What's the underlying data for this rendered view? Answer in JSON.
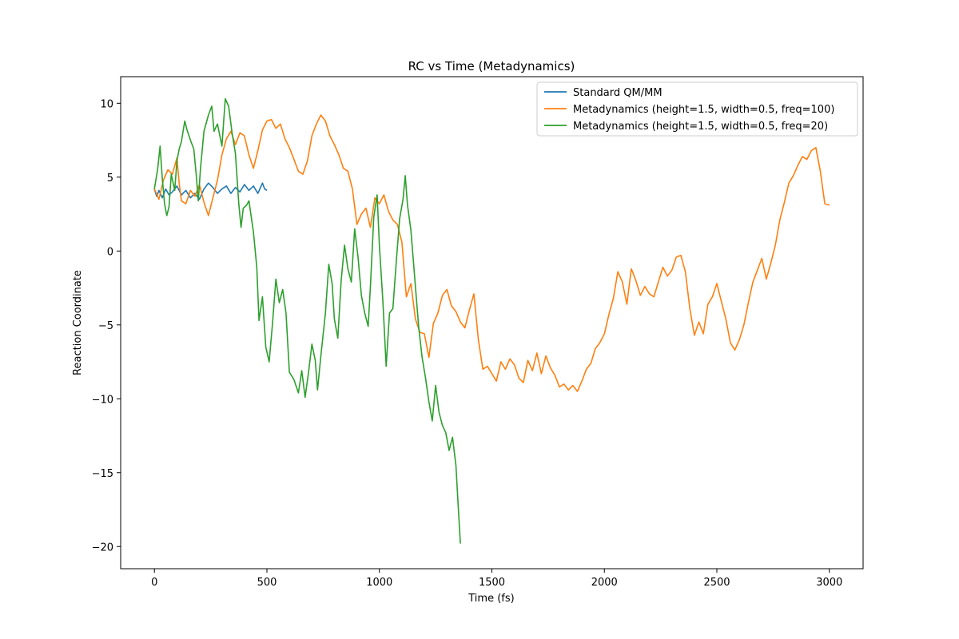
{
  "chart_data": {
    "type": "line",
    "title": "RC vs Time (Metadynamics)",
    "xlabel": "Time (fs)",
    "ylabel": "Reaction Coordinate",
    "xlim": [
      -150,
      3150
    ],
    "ylim": [
      -21.5,
      11.8
    ],
    "xticks": [
      0,
      500,
      1000,
      1500,
      2000,
      2500,
      3000
    ],
    "yticks": [
      -20,
      -15,
      -10,
      -5,
      0,
      5,
      10
    ],
    "grid": false,
    "legend_position": "top-right",
    "series": [
      {
        "name": "Standard QM/MM",
        "color": "#1f77b4",
        "points": [
          [
            0,
            4.2
          ],
          [
            10,
            3.7
          ],
          [
            20,
            4.1
          ],
          [
            35,
            3.6
          ],
          [
            50,
            4.2
          ],
          [
            65,
            3.8
          ],
          [
            80,
            4.0
          ],
          [
            100,
            4.4
          ],
          [
            120,
            3.8
          ],
          [
            140,
            4.1
          ],
          [
            160,
            3.6
          ],
          [
            180,
            3.9
          ],
          [
            200,
            3.5
          ],
          [
            220,
            4.2
          ],
          [
            240,
            4.6
          ],
          [
            260,
            4.3
          ],
          [
            280,
            3.9
          ],
          [
            300,
            4.2
          ],
          [
            320,
            4.4
          ],
          [
            340,
            3.9
          ],
          [
            360,
            4.3
          ],
          [
            380,
            4.0
          ],
          [
            400,
            4.5
          ],
          [
            420,
            4.1
          ],
          [
            440,
            4.4
          ],
          [
            460,
            3.9
          ],
          [
            480,
            4.6
          ],
          [
            490,
            4.2
          ],
          [
            500,
            4.1
          ]
        ]
      },
      {
        "name": "Metadynamics (height=1.5, width=0.5, freq=100)",
        "color": "#ff7f0e",
        "points": [
          [
            0,
            4.2
          ],
          [
            20,
            3.5
          ],
          [
            40,
            4.8
          ],
          [
            60,
            5.5
          ],
          [
            80,
            5.2
          ],
          [
            100,
            6.3
          ],
          [
            110,
            4.6
          ],
          [
            120,
            3.4
          ],
          [
            140,
            3.2
          ],
          [
            160,
            4.1
          ],
          [
            180,
            3.7
          ],
          [
            200,
            4.5
          ],
          [
            220,
            3.3
          ],
          [
            240,
            2.4
          ],
          [
            260,
            3.6
          ],
          [
            280,
            4.8
          ],
          [
            300,
            6.5
          ],
          [
            320,
            7.6
          ],
          [
            340,
            8.1
          ],
          [
            360,
            7.2
          ],
          [
            380,
            8.0
          ],
          [
            400,
            7.8
          ],
          [
            420,
            6.5
          ],
          [
            440,
            5.6
          ],
          [
            460,
            6.8
          ],
          [
            480,
            8.2
          ],
          [
            500,
            8.8
          ],
          [
            520,
            8.9
          ],
          [
            540,
            8.3
          ],
          [
            560,
            8.6
          ],
          [
            580,
            7.6
          ],
          [
            600,
            7.0
          ],
          [
            620,
            6.2
          ],
          [
            640,
            5.4
          ],
          [
            660,
            5.2
          ],
          [
            680,
            6.1
          ],
          [
            700,
            7.8
          ],
          [
            720,
            8.6
          ],
          [
            740,
            9.2
          ],
          [
            760,
            8.8
          ],
          [
            780,
            7.8
          ],
          [
            800,
            7.2
          ],
          [
            820,
            6.5
          ],
          [
            840,
            5.6
          ],
          [
            860,
            5.4
          ],
          [
            880,
            4.2
          ],
          [
            900,
            1.8
          ],
          [
            920,
            2.5
          ],
          [
            940,
            2.9
          ],
          [
            960,
            1.6
          ],
          [
            980,
            3.6
          ],
          [
            1000,
            3.2
          ],
          [
            1020,
            3.8
          ],
          [
            1040,
            2.7
          ],
          [
            1060,
            2.1
          ],
          [
            1080,
            1.8
          ],
          [
            1100,
            0.6
          ],
          [
            1120,
            -3.1
          ],
          [
            1140,
            -2.2
          ],
          [
            1160,
            -4.6
          ],
          [
            1180,
            -5.5
          ],
          [
            1200,
            -5.6
          ],
          [
            1220,
            -7.2
          ],
          [
            1240,
            -4.9
          ],
          [
            1260,
            -4.2
          ],
          [
            1280,
            -3.0
          ],
          [
            1300,
            -2.6
          ],
          [
            1320,
            -3.7
          ],
          [
            1340,
            -4.1
          ],
          [
            1360,
            -4.8
          ],
          [
            1380,
            -5.2
          ],
          [
            1400,
            -4.0
          ],
          [
            1420,
            -2.9
          ],
          [
            1440,
            -6.0
          ],
          [
            1460,
            -8.0
          ],
          [
            1480,
            -7.8
          ],
          [
            1500,
            -8.3
          ],
          [
            1520,
            -8.8
          ],
          [
            1540,
            -7.5
          ],
          [
            1560,
            -8.0
          ],
          [
            1580,
            -7.3
          ],
          [
            1600,
            -7.7
          ],
          [
            1620,
            -8.6
          ],
          [
            1640,
            -8.9
          ],
          [
            1660,
            -7.4
          ],
          [
            1680,
            -8.1
          ],
          [
            1700,
            -6.9
          ],
          [
            1720,
            -8.3
          ],
          [
            1740,
            -7.1
          ],
          [
            1760,
            -7.9
          ],
          [
            1780,
            -8.4
          ],
          [
            1800,
            -9.2
          ],
          [
            1820,
            -9.0
          ],
          [
            1840,
            -9.4
          ],
          [
            1860,
            -9.1
          ],
          [
            1880,
            -9.5
          ],
          [
            1900,
            -8.8
          ],
          [
            1920,
            -8.0
          ],
          [
            1940,
            -7.6
          ],
          [
            1960,
            -6.6
          ],
          [
            1980,
            -6.2
          ],
          [
            2000,
            -5.6
          ],
          [
            2020,
            -4.3
          ],
          [
            2040,
            -3.2
          ],
          [
            2060,
            -1.4
          ],
          [
            2080,
            -2.1
          ],
          [
            2100,
            -3.6
          ],
          [
            2120,
            -1.2
          ],
          [
            2140,
            -2.0
          ],
          [
            2160,
            -3.0
          ],
          [
            2180,
            -2.4
          ],
          [
            2200,
            -2.9
          ],
          [
            2220,
            -3.1
          ],
          [
            2240,
            -2.1
          ],
          [
            2260,
            -1.1
          ],
          [
            2280,
            -1.7
          ],
          [
            2300,
            -1.3
          ],
          [
            2320,
            -0.4
          ],
          [
            2340,
            -0.3
          ],
          [
            2360,
            -1.4
          ],
          [
            2380,
            -3.9
          ],
          [
            2400,
            -5.7
          ],
          [
            2420,
            -4.8
          ],
          [
            2440,
            -5.6
          ],
          [
            2460,
            -3.6
          ],
          [
            2480,
            -3.1
          ],
          [
            2500,
            -2.2
          ],
          [
            2520,
            -3.4
          ],
          [
            2540,
            -4.6
          ],
          [
            2560,
            -6.2
          ],
          [
            2580,
            -6.7
          ],
          [
            2600,
            -6.0
          ],
          [
            2620,
            -5.0
          ],
          [
            2640,
            -3.5
          ],
          [
            2660,
            -2.1
          ],
          [
            2680,
            -1.3
          ],
          [
            2700,
            -0.5
          ],
          [
            2720,
            -1.9
          ],
          [
            2740,
            -0.8
          ],
          [
            2760,
            0.4
          ],
          [
            2780,
            2.1
          ],
          [
            2800,
            3.3
          ],
          [
            2820,
            4.6
          ],
          [
            2840,
            5.1
          ],
          [
            2860,
            5.8
          ],
          [
            2880,
            6.4
          ],
          [
            2900,
            6.2
          ],
          [
            2920,
            6.8
          ],
          [
            2940,
            7.0
          ],
          [
            2960,
            5.4
          ],
          [
            2980,
            3.2
          ],
          [
            3000,
            3.1
          ]
        ]
      },
      {
        "name": "Metadynamics (height=1.5, width=0.5, freq=20)",
        "color": "#2ca02c",
        "points": [
          [
            0,
            4.2
          ],
          [
            15,
            5.6
          ],
          [
            25,
            7.1
          ],
          [
            35,
            4.9
          ],
          [
            45,
            3.2
          ],
          [
            55,
            2.4
          ],
          [
            65,
            3.0
          ],
          [
            75,
            5.2
          ],
          [
            90,
            4.1
          ],
          [
            100,
            6.1
          ],
          [
            110,
            6.9
          ],
          [
            120,
            7.4
          ],
          [
            135,
            8.8
          ],
          [
            145,
            8.2
          ],
          [
            160,
            7.5
          ],
          [
            175,
            6.9
          ],
          [
            185,
            5.3
          ],
          [
            195,
            3.4
          ],
          [
            205,
            5.6
          ],
          [
            220,
            8.1
          ],
          [
            240,
            9.2
          ],
          [
            255,
            9.8
          ],
          [
            265,
            8.1
          ],
          [
            280,
            8.6
          ],
          [
            300,
            7.1
          ],
          [
            315,
            10.3
          ],
          [
            330,
            9.8
          ],
          [
            345,
            8.0
          ],
          [
            360,
            6.6
          ],
          [
            375,
            3.2
          ],
          [
            385,
            1.6
          ],
          [
            395,
            2.9
          ],
          [
            410,
            3.1
          ],
          [
            420,
            3.4
          ],
          [
            440,
            1.3
          ],
          [
            455,
            -1.1
          ],
          [
            465,
            -4.7
          ],
          [
            480,
            -3.1
          ],
          [
            495,
            -6.5
          ],
          [
            510,
            -7.5
          ],
          [
            525,
            -4.9
          ],
          [
            540,
            -1.9
          ],
          [
            555,
            -3.5
          ],
          [
            570,
            -2.6
          ],
          [
            585,
            -4.2
          ],
          [
            600,
            -8.2
          ],
          [
            620,
            -8.7
          ],
          [
            640,
            -9.6
          ],
          [
            655,
            -8.1
          ],
          [
            670,
            -9.9
          ],
          [
            685,
            -8.2
          ],
          [
            700,
            -6.3
          ],
          [
            715,
            -7.4
          ],
          [
            725,
            -9.4
          ],
          [
            740,
            -7.1
          ],
          [
            760,
            -4.2
          ],
          [
            775,
            -0.9
          ],
          [
            790,
            -2.2
          ],
          [
            800,
            -4.6
          ],
          [
            815,
            -5.9
          ],
          [
            830,
            -2.0
          ],
          [
            845,
            0.4
          ],
          [
            860,
            -1.2
          ],
          [
            875,
            -2.1
          ],
          [
            890,
            1.5
          ],
          [
            905,
            -0.4
          ],
          [
            920,
            -3.0
          ],
          [
            935,
            -4.2
          ],
          [
            950,
            -5.1
          ],
          [
            960,
            -2.4
          ],
          [
            975,
            2.3
          ],
          [
            990,
            3.8
          ],
          [
            1000,
            0.4
          ],
          [
            1015,
            -3.3
          ],
          [
            1030,
            -7.8
          ],
          [
            1045,
            -4.2
          ],
          [
            1060,
            -3.9
          ],
          [
            1075,
            -0.7
          ],
          [
            1090,
            2.2
          ],
          [
            1105,
            3.5
          ],
          [
            1115,
            5.1
          ],
          [
            1125,
            3.1
          ],
          [
            1140,
            1.4
          ],
          [
            1160,
            -2.4
          ],
          [
            1175,
            -5.2
          ],
          [
            1190,
            -7.2
          ],
          [
            1205,
            -8.6
          ],
          [
            1220,
            -10.2
          ],
          [
            1235,
            -11.5
          ],
          [
            1250,
            -9.1
          ],
          [
            1265,
            -10.9
          ],
          [
            1280,
            -11.8
          ],
          [
            1295,
            -12.3
          ],
          [
            1310,
            -13.5
          ],
          [
            1325,
            -12.6
          ],
          [
            1340,
            -14.5
          ],
          [
            1350,
            -17.2
          ],
          [
            1360,
            -19.8
          ]
        ]
      }
    ]
  }
}
